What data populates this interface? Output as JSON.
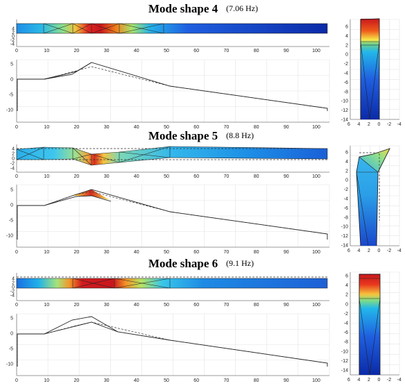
{
  "modes": [
    {
      "title": "Mode shape 4",
      "freq": "(7.06 Hz)"
    },
    {
      "title": "Mode shape 5",
      "freq": "(8.8 Hz)"
    },
    {
      "title": "Mode shape 6",
      "freq": "(9.1 Hz)"
    }
  ],
  "top_view": {
    "x_ticks": [
      "0",
      "10",
      "20",
      "30",
      "40",
      "50",
      "60",
      "70",
      "80",
      "90",
      "100"
    ],
    "y_ticks": [
      "4",
      "2",
      "0",
      "-2",
      "-4"
    ]
  },
  "side_view": {
    "x_ticks": [
      "0",
      "10",
      "20",
      "30",
      "40",
      "50",
      "60",
      "70",
      "80",
      "90",
      "100"
    ],
    "y_ticks": [
      "5",
      "0",
      "-5",
      "-10"
    ]
  },
  "section_view": {
    "x_ticks": [
      "6",
      "4",
      "2",
      "0",
      "-2",
      "-4"
    ],
    "y_ticks": [
      "6",
      "4",
      "2",
      "0",
      "-2",
      "-4",
      "-6",
      "-8",
      "-10",
      "-12",
      "-14"
    ]
  },
  "colors": {
    "red": "#c8161d",
    "orange": "#f07f1c",
    "yellow": "#f6e94a",
    "green": "#6fd08a",
    "cyan": "#22b7ea",
    "blue": "#1f5fe0",
    "navy": "#0b2aa8"
  }
}
